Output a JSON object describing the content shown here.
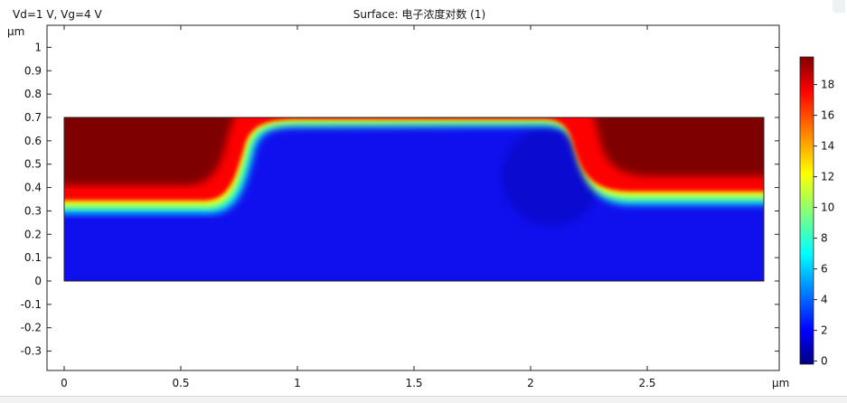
{
  "plot": {
    "condition_label": "Vd=1 V, Vg=4 V",
    "title": "Surface: 电子浓度对数 (1)",
    "unit_x": "μm",
    "unit_y": "μm"
  },
  "chart_data": {
    "type": "heatmap",
    "title": "Surface: 电子浓度对数 (1)",
    "annotation": "Vd=1 V, Vg=4 V",
    "xlabel": "μm",
    "ylabel": "μm",
    "xlim": [
      -0.1,
      3.07
    ],
    "ylim": [
      -0.38,
      1.09
    ],
    "xticks": [
      0,
      0.5,
      1,
      1.5,
      2,
      2.5
    ],
    "xtick_labels": [
      "0",
      "0.5",
      "1",
      "1.5",
      "2",
      "2.5"
    ],
    "yticks": [
      1,
      0.9,
      0.8,
      0.7,
      0.6,
      0.5,
      0.4,
      0.3,
      0.2,
      0.1,
      0,
      -0.1,
      -0.2,
      -0.3
    ],
    "ytick_labels": [
      "1",
      "0.9",
      "0.8",
      "0.7",
      "0.6",
      "0.5",
      "0.4",
      "0.3",
      "0.2",
      "0.1",
      "0",
      "-0.1",
      "-0.2",
      "-0.3"
    ],
    "domain": {
      "x": [
        0,
        3
      ],
      "y": [
        0,
        0.7
      ]
    },
    "colorbar": {
      "range": [
        -0.2,
        19.8
      ],
      "ticks": [
        18,
        16,
        14,
        12,
        10,
        8,
        6,
        4,
        2,
        0
      ],
      "tick_labels": [
        "18",
        "16",
        "14",
        "12",
        "10",
        "8",
        "6",
        "4",
        "2",
        "0"
      ],
      "colormap": "rainbow",
      "colors": [
        "#00007f",
        "#0000ff",
        "#00ffff",
        "#ffff00",
        "#ff0000",
        "#7f0000"
      ]
    },
    "regions": [
      {
        "region": "source (left)",
        "x_range": [
          0,
          0.62
        ],
        "y_range": [
          0.34,
          0.7
        ],
        "value": 19
      },
      {
        "region": "drain (right)",
        "x_range": [
          2.38,
          3
        ],
        "y_range": [
          0.36,
          0.7
        ],
        "value": 19
      },
      {
        "region": "inversion channel",
        "x_range": [
          0.85,
          2.17
        ],
        "y_range": [
          0.66,
          0.7
        ],
        "value": 17
      },
      {
        "region": "substrate",
        "x_range": [
          0,
          3
        ],
        "y_range": [
          0,
          0.33
        ],
        "value": 3
      }
    ]
  }
}
